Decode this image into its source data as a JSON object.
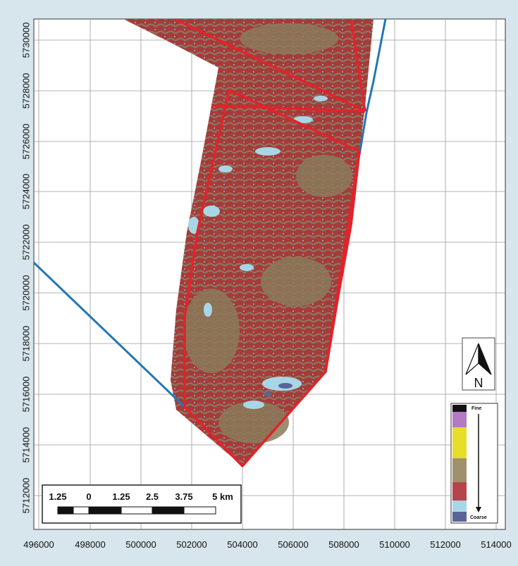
{
  "map": {
    "x_ticks": [
      "496000",
      "498000",
      "500000",
      "502000",
      "504000",
      "506000",
      "508000",
      "510000",
      "512000",
      "514000"
    ],
    "y_ticks": [
      "5730000",
      "5728000",
      "5726000",
      "5724000",
      "5722000",
      "5720000",
      "5718000",
      "5716000",
      "5714000",
      "5712000"
    ]
  },
  "scale_bar": {
    "labels": [
      "1.25",
      "0",
      "1.25",
      "2.5",
      "3.75",
      "5 km"
    ]
  },
  "north_arrow": {
    "label": "N"
  },
  "legend": {
    "top_label": "Fine",
    "bottom_label": "Coarse",
    "classes": [
      {
        "color": "#111111"
      },
      {
        "color": "#b47ac2"
      },
      {
        "color": "#e6de28"
      },
      {
        "color": "#a0906c"
      },
      {
        "color": "#b5454a"
      },
      {
        "color": "#a9d6e6"
      },
      {
        "color": "#5b6496"
      }
    ]
  },
  "colors": {
    "boundary_red": "#e2232a",
    "track_blue": "#2277b4",
    "survey_red": "#a63a3c",
    "survey_tan": "#8a7a5a",
    "survey_light": "#a9d6e6"
  }
}
